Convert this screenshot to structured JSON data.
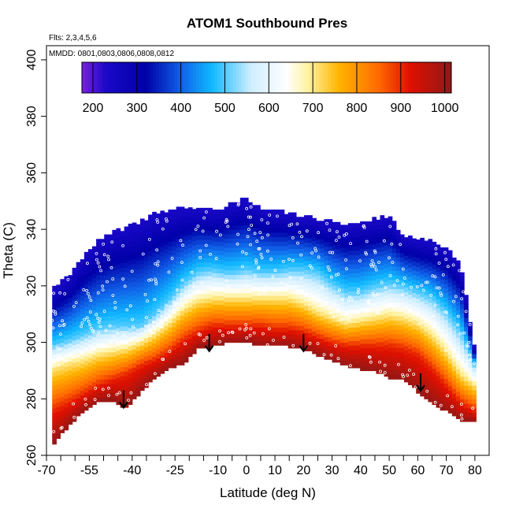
{
  "chart_data": {
    "type": "heatmap",
    "title": "ATOM1 Southbound Pres",
    "note_flights": "Flts: 2,3,4,5,6",
    "note_dates": "MMDD: 0801,0803,0806,0808,0812",
    "xlabel": "Latitude (deg N)",
    "ylabel": "Theta (C)",
    "xlim": [
      -70,
      85
    ],
    "ylim": [
      260,
      405
    ],
    "x_ticks": [
      -70,
      -55,
      -40,
      -25,
      -10,
      0,
      10,
      20,
      30,
      40,
      50,
      60,
      70,
      80
    ],
    "x_ticks_minor": [
      -65,
      -60,
      -50,
      -45,
      -35,
      -30,
      -20,
      -15,
      -5,
      5,
      15,
      25,
      35,
      45,
      55,
      65,
      75
    ],
    "y_ticks": [
      260,
      280,
      300,
      320,
      340,
      360,
      380,
      400
    ],
    "colorbar": {
      "labels": [
        200,
        300,
        400,
        500,
        600,
        700,
        800,
        900,
        1000
      ],
      "range": [
        175,
        1015
      ],
      "stops": [
        {
          "v": 175,
          "c": "#7a1fe0"
        },
        {
          "v": 230,
          "c": "#1a08c8"
        },
        {
          "v": 320,
          "c": "#0000a8"
        },
        {
          "v": 400,
          "c": "#1060e8"
        },
        {
          "v": 470,
          "c": "#10b8ff"
        },
        {
          "v": 560,
          "c": "#cfeeff"
        },
        {
          "v": 640,
          "c": "#ffffff"
        },
        {
          "v": 690,
          "c": "#fff2a0"
        },
        {
          "v": 760,
          "c": "#ffb400"
        },
        {
          "v": 850,
          "c": "#ff6a00"
        },
        {
          "v": 920,
          "c": "#e01000"
        },
        {
          "v": 1015,
          "c": "#901818"
        }
      ]
    },
    "profile": {
      "lat": [
        -68,
        -62,
        -57,
        -52,
        -47,
        -42,
        -37,
        -32,
        -27,
        -22,
        -17,
        -12,
        -8,
        -4,
        0,
        5,
        10,
        15,
        20,
        25,
        30,
        35,
        40,
        45,
        50,
        55,
        60,
        65,
        70,
        75,
        80
      ],
      "theta_bottom": [
        264,
        271,
        276,
        279,
        280,
        277,
        283,
        288,
        291,
        293,
        298,
        299,
        300,
        300,
        301,
        299,
        299,
        299,
        298,
        296,
        294,
        292,
        291,
        290,
        288,
        287,
        283,
        279,
        276,
        273,
        272
      ],
      "theta_top": [
        318,
        323,
        330,
        335,
        338,
        340,
        342,
        345,
        346,
        347,
        347,
        346,
        347,
        349,
        350,
        347,
        346,
        345,
        344,
        343,
        342,
        341,
        342,
        343,
        344,
        337,
        336,
        335,
        333,
        327,
        296
      ],
      "theta_p500": [
        299,
        301,
        303,
        305,
        306,
        306,
        306,
        310,
        315,
        321,
        325,
        326,
        325,
        325,
        326,
        325,
        325,
        326,
        326,
        325,
        321,
        318,
        318,
        320,
        321,
        320,
        318,
        316,
        311,
        304,
        292
      ],
      "theta_p700": [
        291,
        293,
        294,
        296,
        297,
        298,
        300,
        303,
        307,
        312,
        315,
        316,
        316,
        316,
        316,
        316,
        316,
        316,
        314,
        311,
        309,
        307,
        308,
        309,
        310,
        309,
        307,
        303,
        297,
        289,
        285
      ],
      "theta_p900": [
        276,
        279,
        282,
        285,
        287,
        289,
        292,
        294,
        297,
        301,
        304,
        306,
        306,
        306,
        306,
        306,
        305,
        305,
        304,
        302,
        300,
        299,
        299,
        299,
        299,
        298,
        296,
        291,
        285,
        279,
        276
      ]
    },
    "arrows": [
      {
        "lat": -43,
        "theta": 283
      },
      {
        "lat": -13,
        "theta": 303
      },
      {
        "lat": 20,
        "theta": 303
      },
      {
        "lat": 61,
        "theta": 289
      }
    ]
  }
}
